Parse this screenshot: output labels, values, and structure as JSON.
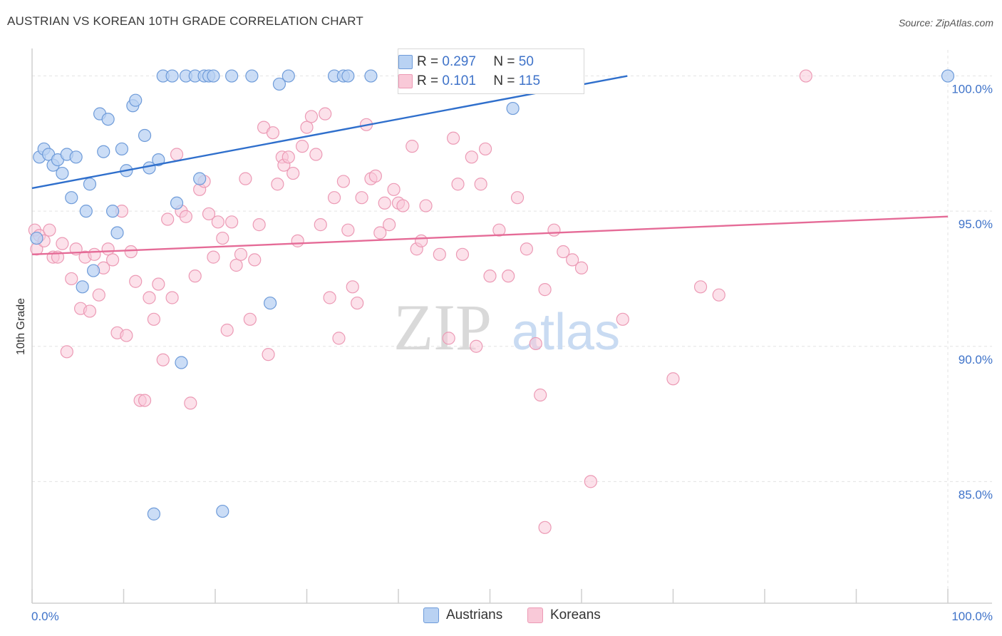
{
  "title": "AUSTRIAN VS KOREAN 10TH GRADE CORRELATION CHART",
  "source": "Source: ZipAtlas.com",
  "watermark": {
    "zip": "ZIP",
    "atlas": "atlas"
  },
  "legend": {
    "austrians": {
      "r_label": "R =",
      "r_value": "0.297",
      "n_label": "N =",
      "n_value": "50"
    },
    "koreans": {
      "r_label": "R =",
      "r_value": "0.101",
      "n_label": "N =",
      "n_value": "115"
    }
  },
  "bottom_legend": {
    "austrians": "Austrians",
    "koreans": "Koreans"
  },
  "colors": {
    "austrians_fill": "#b9d2f3",
    "austrians_stroke": "#6e9bd9",
    "austrians_line": "#2f6fcc",
    "koreans_fill": "#f9c9d8",
    "koreans_stroke": "#ec9ab5",
    "koreans_line": "#e56b97",
    "grid": "#e3e3e3",
    "axis_label": "#3f73c9"
  },
  "chart_data": {
    "type": "scatter",
    "title": "AUSTRIAN VS KOREAN 10TH GRADE CORRELATION CHART",
    "xlabel": "",
    "ylabel": "10th Grade",
    "xlim": [
      0,
      100
    ],
    "ylim": [
      80.5,
      100.7
    ],
    "x_tick_labels": [
      "0.0%",
      "100.0%"
    ],
    "y_ticks": [
      85,
      90,
      95,
      100
    ],
    "y_tick_labels": [
      "85.0%",
      "90.0%",
      "95.0%",
      "100.0%"
    ],
    "grid": true,
    "legend_position": "top-center",
    "series": [
      {
        "name": "Austrians",
        "r": 0.297,
        "n": 50,
        "trend": {
          "x": [
            0,
            65
          ],
          "y": [
            95.85,
            100.0
          ]
        },
        "points": [
          [
            0.5,
            94.0
          ],
          [
            0.8,
            97.0
          ],
          [
            1.3,
            97.3
          ],
          [
            1.8,
            97.1
          ],
          [
            2.3,
            96.7
          ],
          [
            2.8,
            96.9
          ],
          [
            3.3,
            96.4
          ],
          [
            3.8,
            97.1
          ],
          [
            4.3,
            95.5
          ],
          [
            4.8,
            97.0
          ],
          [
            5.5,
            92.2
          ],
          [
            5.9,
            95.0
          ],
          [
            6.3,
            96.0
          ],
          [
            6.7,
            92.8
          ],
          [
            7.4,
            98.6
          ],
          [
            7.8,
            97.2
          ],
          [
            8.3,
            98.4
          ],
          [
            8.8,
            95.0
          ],
          [
            9.3,
            94.2
          ],
          [
            9.8,
            97.3
          ],
          [
            10.3,
            96.5
          ],
          [
            11.0,
            98.9
          ],
          [
            11.3,
            99.1
          ],
          [
            12.3,
            97.8
          ],
          [
            12.8,
            96.6
          ],
          [
            13.3,
            83.8
          ],
          [
            13.8,
            96.9
          ],
          [
            14.3,
            100.0
          ],
          [
            15.3,
            100.0
          ],
          [
            15.8,
            95.3
          ],
          [
            16.3,
            89.4
          ],
          [
            16.8,
            100.0
          ],
          [
            17.8,
            100.0
          ],
          [
            18.3,
            96.2
          ],
          [
            18.8,
            100.0
          ],
          [
            19.3,
            100.0
          ],
          [
            19.8,
            100.0
          ],
          [
            20.8,
            83.9
          ],
          [
            21.8,
            100.0
          ],
          [
            24.0,
            100.0
          ],
          [
            26.0,
            91.6
          ],
          [
            27.0,
            99.7
          ],
          [
            28.0,
            100.0
          ],
          [
            33.0,
            100.0
          ],
          [
            34.0,
            100.0
          ],
          [
            34.5,
            100.0
          ],
          [
            37.0,
            100.0
          ],
          [
            41.0,
            100.0
          ],
          [
            52.5,
            98.8
          ],
          [
            100.0,
            100.0
          ]
        ]
      },
      {
        "name": "Koreans",
        "r": 0.101,
        "n": 115,
        "trend": {
          "x": [
            0,
            100
          ],
          "y": [
            93.4,
            94.8
          ]
        },
        "points": [
          [
            0.3,
            94.3
          ],
          [
            0.5,
            93.6
          ],
          [
            0.8,
            94.1
          ],
          [
            1.3,
            93.9
          ],
          [
            1.9,
            94.3
          ],
          [
            2.3,
            93.3
          ],
          [
            2.8,
            93.3
          ],
          [
            3.3,
            93.8
          ],
          [
            3.8,
            89.8
          ],
          [
            4.3,
            92.5
          ],
          [
            4.8,
            93.6
          ],
          [
            5.3,
            91.4
          ],
          [
            5.8,
            93.3
          ],
          [
            6.3,
            91.3
          ],
          [
            6.8,
            93.4
          ],
          [
            7.3,
            91.9
          ],
          [
            7.8,
            92.9
          ],
          [
            8.3,
            93.6
          ],
          [
            8.8,
            93.2
          ],
          [
            9.3,
            90.5
          ],
          [
            9.8,
            95.0
          ],
          [
            10.3,
            90.4
          ],
          [
            10.8,
            93.5
          ],
          [
            11.3,
            92.4
          ],
          [
            11.8,
            88.0
          ],
          [
            12.3,
            88.0
          ],
          [
            12.8,
            91.8
          ],
          [
            13.3,
            91.0
          ],
          [
            13.8,
            92.3
          ],
          [
            14.3,
            89.5
          ],
          [
            14.8,
            94.7
          ],
          [
            15.3,
            91.8
          ],
          [
            15.8,
            97.1
          ],
          [
            16.3,
            95.0
          ],
          [
            16.8,
            94.8
          ],
          [
            17.3,
            87.9
          ],
          [
            17.8,
            92.6
          ],
          [
            18.3,
            95.8
          ],
          [
            18.8,
            96.1
          ],
          [
            19.3,
            94.9
          ],
          [
            19.8,
            93.3
          ],
          [
            20.3,
            94.6
          ],
          [
            20.8,
            94.0
          ],
          [
            21.3,
            90.6
          ],
          [
            21.8,
            94.6
          ],
          [
            22.3,
            93.0
          ],
          [
            22.8,
            93.4
          ],
          [
            23.3,
            96.2
          ],
          [
            23.8,
            91.0
          ],
          [
            24.3,
            93.2
          ],
          [
            24.8,
            94.5
          ],
          [
            25.3,
            98.1
          ],
          [
            25.8,
            89.7
          ],
          [
            26.3,
            97.9
          ],
          [
            26.8,
            96.0
          ],
          [
            27.3,
            97.0
          ],
          [
            27.5,
            96.7
          ],
          [
            28.0,
            97.0
          ],
          [
            28.5,
            96.4
          ],
          [
            29.0,
            93.9
          ],
          [
            29.5,
            97.4
          ],
          [
            30.0,
            98.1
          ],
          [
            30.5,
            98.5
          ],
          [
            31.0,
            97.1
          ],
          [
            31.5,
            94.5
          ],
          [
            32.0,
            98.6
          ],
          [
            32.5,
            91.8
          ],
          [
            33.0,
            95.5
          ],
          [
            33.5,
            90.3
          ],
          [
            34.0,
            96.1
          ],
          [
            34.5,
            94.3
          ],
          [
            35.0,
            92.2
          ],
          [
            35.5,
            91.6
          ],
          [
            36.0,
            95.5
          ],
          [
            36.5,
            98.2
          ],
          [
            37.0,
            96.2
          ],
          [
            37.5,
            96.3
          ],
          [
            38.0,
            94.2
          ],
          [
            38.5,
            95.3
          ],
          [
            39.0,
            94.5
          ],
          [
            39.5,
            95.8
          ],
          [
            40.0,
            95.3
          ],
          [
            40.5,
            95.2
          ],
          [
            41.5,
            97.4
          ],
          [
            42.0,
            93.6
          ],
          [
            42.5,
            93.9
          ],
          [
            43.0,
            95.2
          ],
          [
            44.5,
            93.4
          ],
          [
            45.5,
            90.3
          ],
          [
            46.0,
            97.7
          ],
          [
            46.5,
            96.0
          ],
          [
            47.0,
            93.4
          ],
          [
            48.0,
            97.0
          ],
          [
            48.5,
            90.0
          ],
          [
            49.0,
            96.0
          ],
          [
            49.5,
            97.3
          ],
          [
            50.0,
            92.6
          ],
          [
            51.0,
            94.3
          ],
          [
            52.0,
            92.6
          ],
          [
            53.0,
            95.5
          ],
          [
            54.0,
            93.6
          ],
          [
            55.0,
            90.1
          ],
          [
            55.5,
            88.2
          ],
          [
            56.0,
            92.1
          ],
          [
            57.0,
            94.3
          ],
          [
            58.0,
            93.5
          ],
          [
            59.0,
            93.2
          ],
          [
            60.0,
            92.9
          ],
          [
            61.0,
            85.0
          ],
          [
            64.5,
            91.0
          ],
          [
            70.0,
            88.8
          ],
          [
            73.0,
            92.2
          ],
          [
            75.0,
            91.9
          ],
          [
            56.0,
            83.3
          ],
          [
            84.5,
            100.0
          ]
        ]
      }
    ]
  }
}
